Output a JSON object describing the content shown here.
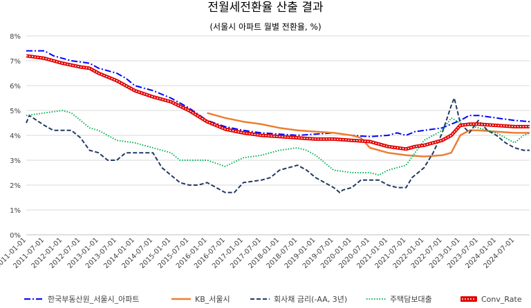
{
  "chart_data": {
    "type": "line",
    "title": "전월세전환율 산출 결과",
    "subtitle": "(서울시 아파트 월별 전환율, %)",
    "xlabel": "",
    "ylabel": "",
    "ylim": [
      0,
      8
    ],
    "yticks": [
      "0%",
      "1%",
      "2%",
      "3%",
      "4%",
      "5%",
      "6%",
      "7%",
      "8%"
    ],
    "x_range": [
      "2011-01",
      "2024-12"
    ],
    "x_ticks": [
      "2011-01-01",
      "2011-07-01",
      "2012-01-01",
      "2012-07-01",
      "2013-01-01",
      "2013-07-01",
      "2014-01-01",
      "2014-07-01",
      "2015-01-01",
      "2015-07-01",
      "2016-01-01",
      "2016-07-01",
      "2017-01-01",
      "2017-07-01",
      "2018-01-01",
      "2018-07-01",
      "2019-01-01",
      "2019-07-01",
      "2020-01-01",
      "2020-07-01",
      "2021-01-01",
      "2021-07-01",
      "2022-01-01",
      "2022-07-01",
      "2023-01-01",
      "2023-07-01",
      "2024-01-01",
      "2024-07-01"
    ],
    "grid": true,
    "legend_position": "bottom",
    "series": [
      {
        "name": "한국부동산원_서울시_아파트",
        "color": "#0000ff",
        "style": "dashdot",
        "points": [
          [
            "2011-01",
            7.4
          ],
          [
            "2011-07",
            7.4
          ],
          [
            "2011-10",
            7.2
          ],
          [
            "2012-04",
            7.0
          ],
          [
            "2012-10",
            6.9
          ],
          [
            "2013-01",
            6.7
          ],
          [
            "2013-07",
            6.5
          ],
          [
            "2013-10",
            6.3
          ],
          [
            "2014-01",
            6.0
          ],
          [
            "2014-07",
            5.8
          ],
          [
            "2015-01",
            5.5
          ],
          [
            "2015-07",
            5.1
          ],
          [
            "2016-01",
            4.6
          ],
          [
            "2016-07",
            4.35
          ],
          [
            "2017-01",
            4.2
          ],
          [
            "2017-07",
            4.1
          ],
          [
            "2018-01",
            4.05
          ],
          [
            "2018-07",
            4.0
          ],
          [
            "2019-01",
            4.05
          ],
          [
            "2019-07",
            4.1
          ],
          [
            "2020-01",
            4.0
          ],
          [
            "2020-07",
            3.95
          ],
          [
            "2021-01",
            4.0
          ],
          [
            "2021-04",
            4.1
          ],
          [
            "2021-07",
            4.0
          ],
          [
            "2021-10",
            4.15
          ],
          [
            "2022-01",
            4.2
          ],
          [
            "2022-07",
            4.3
          ],
          [
            "2023-01",
            4.6
          ],
          [
            "2023-04",
            4.8
          ],
          [
            "2023-07",
            4.8
          ],
          [
            "2024-01",
            4.7
          ],
          [
            "2024-07",
            4.6
          ],
          [
            "2024-12",
            4.55
          ]
        ]
      },
      {
        "name": "KB_서울시",
        "color": "#ed7d31",
        "style": "solid",
        "points": [
          [
            "2016-01",
            4.9
          ],
          [
            "2016-07",
            4.7
          ],
          [
            "2017-01",
            4.55
          ],
          [
            "2017-07",
            4.45
          ],
          [
            "2018-01",
            4.3
          ],
          [
            "2018-07",
            4.2
          ],
          [
            "2019-01",
            4.15
          ],
          [
            "2019-07",
            4.1
          ],
          [
            "2020-01",
            4.0
          ],
          [
            "2020-04",
            3.9
          ],
          [
            "2020-07",
            3.5
          ],
          [
            "2021-01",
            3.3
          ],
          [
            "2021-07",
            3.2
          ],
          [
            "2022-01",
            3.15
          ],
          [
            "2022-07",
            3.2
          ],
          [
            "2022-10",
            3.3
          ],
          [
            "2023-01",
            4.0
          ],
          [
            "2023-04",
            4.2
          ],
          [
            "2023-07",
            4.2
          ],
          [
            "2024-01",
            4.15
          ],
          [
            "2024-07",
            4.1
          ],
          [
            "2024-12",
            4.1
          ]
        ]
      },
      {
        "name": "회사채 금리(-AA, 3년)",
        "color": "#1f3864",
        "style": "dashed",
        "points": [
          [
            "2011-01",
            4.5
          ],
          [
            "2011-02",
            4.8
          ],
          [
            "2011-07",
            4.4
          ],
          [
            "2011-10",
            4.2
          ],
          [
            "2012-04",
            4.2
          ],
          [
            "2012-07",
            3.9
          ],
          [
            "2012-10",
            3.4
          ],
          [
            "2013-01",
            3.3
          ],
          [
            "2013-04",
            3.0
          ],
          [
            "2013-07",
            3.0
          ],
          [
            "2013-10",
            3.3
          ],
          [
            "2014-01",
            3.3
          ],
          [
            "2014-04",
            3.3
          ],
          [
            "2014-07",
            3.3
          ],
          [
            "2014-10",
            2.7
          ],
          [
            "2015-01",
            2.4
          ],
          [
            "2015-04",
            2.1
          ],
          [
            "2015-07",
            2.0
          ],
          [
            "2015-10",
            2.0
          ],
          [
            "2016-01",
            2.1
          ],
          [
            "2016-07",
            1.7
          ],
          [
            "2016-10",
            1.7
          ],
          [
            "2017-01",
            2.1
          ],
          [
            "2017-07",
            2.2
          ],
          [
            "2017-10",
            2.3
          ],
          [
            "2018-01",
            2.6
          ],
          [
            "2018-04",
            2.7
          ],
          [
            "2018-07",
            2.8
          ],
          [
            "2018-10",
            2.6
          ],
          [
            "2019-01",
            2.3
          ],
          [
            "2019-07",
            1.9
          ],
          [
            "2019-09",
            1.7
          ],
          [
            "2019-10",
            1.8
          ],
          [
            "2020-01",
            1.9
          ],
          [
            "2020-04",
            2.2
          ],
          [
            "2020-07",
            2.2
          ],
          [
            "2020-10",
            2.2
          ],
          [
            "2021-01",
            2.0
          ],
          [
            "2021-04",
            1.9
          ],
          [
            "2021-07",
            1.9
          ],
          [
            "2021-09",
            2.3
          ],
          [
            "2021-10",
            2.4
          ],
          [
            "2022-01",
            2.7
          ],
          [
            "2022-04",
            3.3
          ],
          [
            "2022-07",
            4.1
          ],
          [
            "2022-10",
            5.2
          ],
          [
            "2022-11",
            5.5
          ],
          [
            "2023-01",
            4.5
          ],
          [
            "2023-04",
            4.1
          ],
          [
            "2023-07",
            4.6
          ],
          [
            "2023-10",
            4.2
          ],
          [
            "2024-01",
            4.0
          ],
          [
            "2024-04",
            3.7
          ],
          [
            "2024-07",
            3.5
          ],
          [
            "2024-10",
            3.4
          ],
          [
            "2024-12",
            3.4
          ]
        ]
      },
      {
        "name": "주택담보대출",
        "color": "#00b050",
        "style": "dotted",
        "points": [
          [
            "2011-01",
            4.8
          ],
          [
            "2011-07",
            4.9
          ],
          [
            "2012-01",
            5.0
          ],
          [
            "2012-04",
            4.9
          ],
          [
            "2012-07",
            4.6
          ],
          [
            "2012-10",
            4.3
          ],
          [
            "2013-01",
            4.2
          ],
          [
            "2013-07",
            3.8
          ],
          [
            "2014-01",
            3.7
          ],
          [
            "2014-07",
            3.5
          ],
          [
            "2015-01",
            3.3
          ],
          [
            "2015-04",
            3.0
          ],
          [
            "2015-07",
            3.0
          ],
          [
            "2015-10",
            3.0
          ],
          [
            "2016-01",
            3.0
          ],
          [
            "2016-07",
            2.75
          ],
          [
            "2017-01",
            3.1
          ],
          [
            "2017-07",
            3.2
          ],
          [
            "2018-01",
            3.4
          ],
          [
            "2018-07",
            3.5
          ],
          [
            "2018-10",
            3.4
          ],
          [
            "2019-01",
            3.2
          ],
          [
            "2019-07",
            2.6
          ],
          [
            "2020-01",
            2.5
          ],
          [
            "2020-07",
            2.5
          ],
          [
            "2020-10",
            2.4
          ],
          [
            "2021-01",
            2.6
          ],
          [
            "2021-07",
            2.8
          ],
          [
            "2021-10",
            3.3
          ],
          [
            "2022-01",
            3.8
          ],
          [
            "2022-07",
            4.2
          ],
          [
            "2022-10",
            4.7
          ],
          [
            "2023-01",
            4.5
          ],
          [
            "2023-07",
            4.3
          ],
          [
            "2024-01",
            4.1
          ],
          [
            "2024-07",
            3.7
          ],
          [
            "2024-10",
            4.0
          ],
          [
            "2024-12",
            4.1
          ]
        ]
      },
      {
        "name": "Conv_Rate",
        "color": "#e00000",
        "style": "double",
        "points": [
          [
            "2011-01",
            7.2
          ],
          [
            "2011-07",
            7.1
          ],
          [
            "2012-01",
            6.9
          ],
          [
            "2012-07",
            6.75
          ],
          [
            "2012-10",
            6.7
          ],
          [
            "2013-01",
            6.5
          ],
          [
            "2013-07",
            6.2
          ],
          [
            "2014-01",
            5.8
          ],
          [
            "2014-07",
            5.55
          ],
          [
            "2015-01",
            5.35
          ],
          [
            "2015-07",
            5.0
          ],
          [
            "2016-01",
            4.55
          ],
          [
            "2016-07",
            4.25
          ],
          [
            "2017-01",
            4.1
          ],
          [
            "2017-07",
            4.0
          ],
          [
            "2018-01",
            3.95
          ],
          [
            "2018-07",
            3.9
          ],
          [
            "2019-01",
            3.85
          ],
          [
            "2019-07",
            3.85
          ],
          [
            "2020-01",
            3.8
          ],
          [
            "2020-07",
            3.75
          ],
          [
            "2021-01",
            3.55
          ],
          [
            "2021-07",
            3.45
          ],
          [
            "2021-10",
            3.55
          ],
          [
            "2022-01",
            3.6
          ],
          [
            "2022-07",
            3.8
          ],
          [
            "2022-10",
            4.0
          ],
          [
            "2023-01",
            4.4
          ],
          [
            "2023-04",
            4.45
          ],
          [
            "2023-07",
            4.45
          ],
          [
            "2024-01",
            4.4
          ],
          [
            "2024-07",
            4.35
          ],
          [
            "2024-12",
            4.35
          ]
        ]
      }
    ]
  }
}
